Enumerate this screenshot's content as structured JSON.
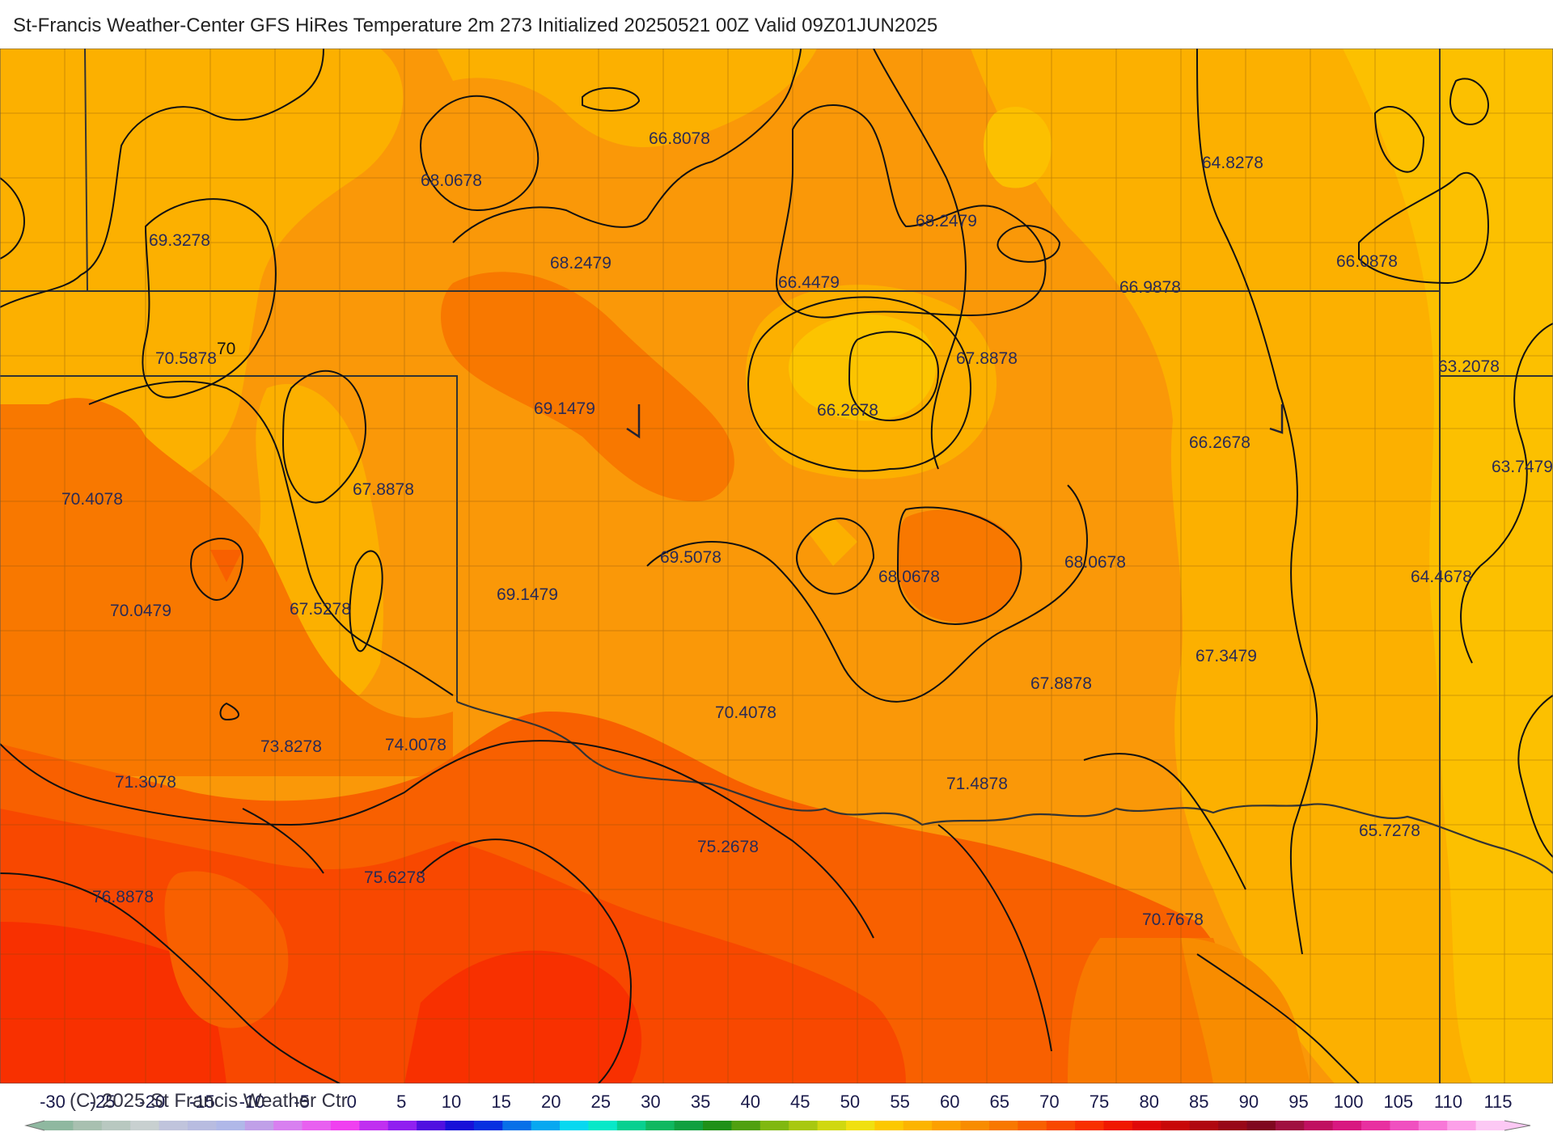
{
  "header": {
    "title": "St-Francis Weather-Center GFS HiRes Temperature 2m  273 Initialized 20250521 00Z Valid 09Z01JUN2025"
  },
  "footer": {
    "copyright": "(C) 2025 St Francis Weather Ctr"
  },
  "map": {
    "contour_labels": [
      "70"
    ],
    "value_labels": [
      "66.8078",
      "64.8278",
      "68.0678",
      "68.2479",
      "69.3278",
      "68.2479",
      "66.4479",
      "66.9878",
      "66.0878",
      "70.5878",
      "67.8878",
      "63.2078",
      "69.1479",
      "66.2678",
      "66.2678",
      "63.7479",
      "70.4078",
      "67.8878",
      "69.5078",
      "68.0678",
      "68.0678",
      "64.4678",
      "69.1479",
      "70.0479",
      "67.5278",
      "67.3479",
      "67.8878",
      "70.4078",
      "73.8278",
      "74.0078",
      "71.4878",
      "71.3078",
      "75.2678",
      "65.7278",
      "75.6278",
      "76.8878",
      "70.7678"
    ]
  },
  "colorbar": {
    "ticks": [
      "-30",
      "-25",
      "-20",
      "-15",
      "-10",
      "-5",
      "0",
      "5",
      "10",
      "15",
      "20",
      "25",
      "30",
      "35",
      "40",
      "45",
      "50",
      "55",
      "60",
      "65",
      "70",
      "75",
      "80",
      "85",
      "90",
      "95",
      "100",
      "105",
      "110",
      "115"
    ],
    "colors": [
      "#8fb8a0",
      "#a8c0b0",
      "#b8c8c0",
      "#c8d0d0",
      "#c0c4dc",
      "#b8bce0",
      "#b0b8e8",
      "#c0a0e8",
      "#d880f0",
      "#e860f0",
      "#f040f0",
      "#c030f0",
      "#9020f0",
      "#5010e0",
      "#1810d8",
      "#0830e0",
      "#0870e8",
      "#08a8f0",
      "#08d8f0",
      "#08e8c8",
      "#08d090",
      "#10b860",
      "#10a040",
      "#209018",
      "#50a010",
      "#80b810",
      "#a8c810",
      "#d0d810",
      "#f0e010",
      "#fcc800",
      "#fcb400",
      "#fca000",
      "#f88c00",
      "#f87800",
      "#f86000",
      "#f84800",
      "#f83000",
      "#f01800",
      "#e00808",
      "#c80808",
      "#b00810",
      "#980818",
      "#800820",
      "#a01040",
      "#c01060",
      "#d81880",
      "#e830a0",
      "#f050c0",
      "#f878d8",
      "#fca0e8",
      "#fcc8f4"
    ]
  }
}
